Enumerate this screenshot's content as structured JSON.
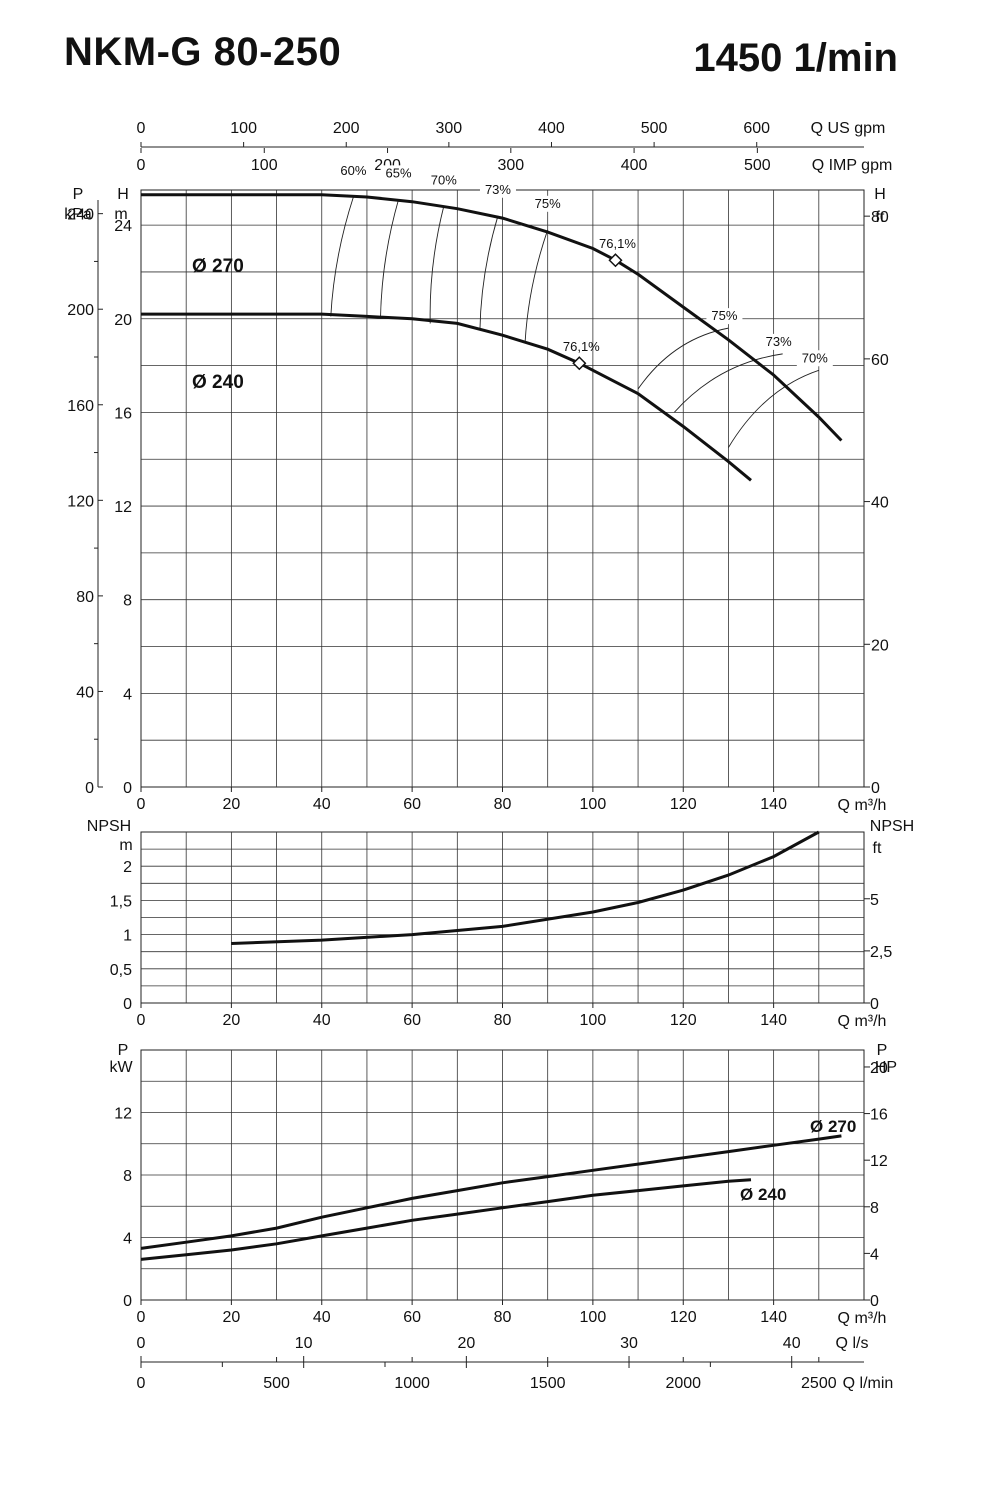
{
  "header": {
    "model": "NKM-G 80-250",
    "speed": "1450 1/min"
  },
  "chart_data": [
    {
      "id": "head",
      "type": "line",
      "x_label": "Q m³/h",
      "x_ticks": [
        "0",
        "20",
        "40",
        "60",
        "80",
        "100",
        "120",
        "140"
      ],
      "xlim": [
        0,
        160
      ],
      "left_axis_H": {
        "label": "H",
        "unit": "m",
        "ticks": [
          "0",
          "4",
          "8",
          "12",
          "16",
          "20",
          "24"
        ],
        "ylim": [
          0,
          25.5
        ]
      },
      "left_axis_P": {
        "label": "P",
        "unit": "kPa",
        "ticks": [
          "0",
          "40",
          "80",
          "120",
          "160",
          "200",
          "240"
        ]
      },
      "right_axis": {
        "label": "H",
        "unit": "ft",
        "ticks": [
          "0",
          "20",
          "40",
          "60",
          "80"
        ]
      },
      "top_axis_us": {
        "label": "Q US gpm",
        "ticks": [
          "0",
          "100",
          "200",
          "300",
          "400",
          "500",
          "600"
        ]
      },
      "top_axis_imp": {
        "label": "Q IMP gpm",
        "ticks": [
          "0",
          "100",
          "200",
          "300",
          "400",
          "500"
        ]
      },
      "grid": true,
      "series": [
        {
          "name": "Ø 270",
          "x": [
            0,
            20,
            40,
            50,
            60,
            70,
            80,
            90,
            100,
            105,
            110,
            120,
            130,
            140,
            150,
            155
          ],
          "y": [
            25.3,
            25.3,
            25.3,
            25.2,
            25.0,
            24.7,
            24.3,
            23.7,
            23.0,
            22.5,
            21.9,
            20.5,
            19.1,
            17.6,
            15.8,
            14.8
          ]
        },
        {
          "name": "Ø 240",
          "x": [
            0,
            20,
            40,
            50,
            60,
            70,
            80,
            90,
            97,
            100,
            110,
            120,
            130,
            135
          ],
          "y": [
            20.2,
            20.2,
            20.2,
            20.1,
            20.0,
            19.8,
            19.3,
            18.7,
            18.1,
            17.8,
            16.8,
            15.4,
            13.9,
            13.1
          ]
        }
      ],
      "efficiency_lines": [
        {
          "label": "60%",
          "from": [
            42,
            20.1
          ],
          "to": [
            47,
            25.2
          ]
        },
        {
          "label": "65%",
          "from": [
            53,
            20.0
          ],
          "to": [
            57,
            25.1
          ]
        },
        {
          "label": "70%",
          "from": [
            64,
            19.8
          ],
          "to": [
            67,
            24.8
          ]
        },
        {
          "label": "73%",
          "from": [
            75,
            19.5
          ],
          "to": [
            79,
            24.4
          ]
        },
        {
          "label": "75%",
          "from": [
            85,
            19.0
          ],
          "to": [
            90,
            23.8
          ]
        },
        {
          "label": "75%",
          "from": [
            110,
            17.0
          ],
          "to": [
            130,
            19.6
          ]
        },
        {
          "label": "73%",
          "from": [
            118,
            16.0
          ],
          "to": [
            142,
            18.5
          ]
        },
        {
          "label": "70%",
          "from": [
            130,
            14.5
          ],
          "to": [
            150,
            17.8
          ]
        }
      ],
      "bep_points": [
        {
          "label": "76,1%",
          "x": 105,
          "y": 22.5
        },
        {
          "label": "76,1%",
          "x": 97,
          "y": 18.1
        }
      ]
    },
    {
      "id": "npsh",
      "type": "line",
      "x_label": "Q m³/h",
      "x_ticks": [
        "0",
        "20",
        "40",
        "60",
        "80",
        "100",
        "120",
        "140"
      ],
      "xlim": [
        0,
        160
      ],
      "left_axis": {
        "label": "NPSH",
        "unit": "m",
        "ticks": [
          "0",
          "0,5",
          "1",
          "1,5",
          "2"
        ],
        "ylim": [
          0,
          2.5
        ]
      },
      "right_axis": {
        "label": "NPSH",
        "unit": "ft",
        "ticks": [
          "0",
          "2,5",
          "5"
        ]
      },
      "grid": true,
      "series": [
        {
          "x": [
            20,
            40,
            60,
            80,
            100,
            110,
            120,
            130,
            140,
            150
          ],
          "y": [
            0.87,
            0.92,
            1.0,
            1.12,
            1.33,
            1.47,
            1.65,
            1.87,
            2.14,
            2.5
          ]
        }
      ]
    },
    {
      "id": "power",
      "type": "line",
      "x_label": "Q m³/h",
      "x_ticks": [
        "0",
        "20",
        "40",
        "60",
        "80",
        "100",
        "120",
        "140"
      ],
      "xlim": [
        0,
        160
      ],
      "left_axis": {
        "label": "P",
        "unit": "kW",
        "ticks": [
          "0",
          "4",
          "8",
          "12"
        ],
        "ylim": [
          0,
          16
        ]
      },
      "right_axis": {
        "label": "P",
        "unit": "HP",
        "ticks": [
          "0",
          "4",
          "8",
          "12",
          "16",
          "20"
        ]
      },
      "bottom_axis_ls": {
        "label": "Q l/s",
        "ticks": [
          "0",
          "10",
          "20",
          "30",
          "40"
        ]
      },
      "bottom_axis_lmin": {
        "label": "Q l/min",
        "ticks": [
          "0",
          "500",
          "1000",
          "1500",
          "2000",
          "2500"
        ]
      },
      "grid": true,
      "series": [
        {
          "name": "Ø 270",
          "x": [
            0,
            10,
            20,
            30,
            40,
            50,
            60,
            70,
            80,
            90,
            100,
            110,
            120,
            130,
            140,
            150,
            155
          ],
          "y": [
            3.3,
            3.7,
            4.1,
            4.6,
            5.3,
            5.9,
            6.5,
            7.0,
            7.5,
            7.9,
            8.3,
            8.7,
            9.1,
            9.5,
            9.9,
            10.3,
            10.5
          ]
        },
        {
          "name": "Ø 240",
          "x": [
            0,
            10,
            20,
            30,
            40,
            50,
            60,
            70,
            80,
            90,
            100,
            110,
            120,
            130,
            135
          ],
          "y": [
            2.6,
            2.9,
            3.2,
            3.6,
            4.1,
            4.6,
            5.1,
            5.5,
            5.9,
            6.3,
            6.7,
            7.0,
            7.3,
            7.6,
            7.7
          ]
        }
      ]
    }
  ]
}
